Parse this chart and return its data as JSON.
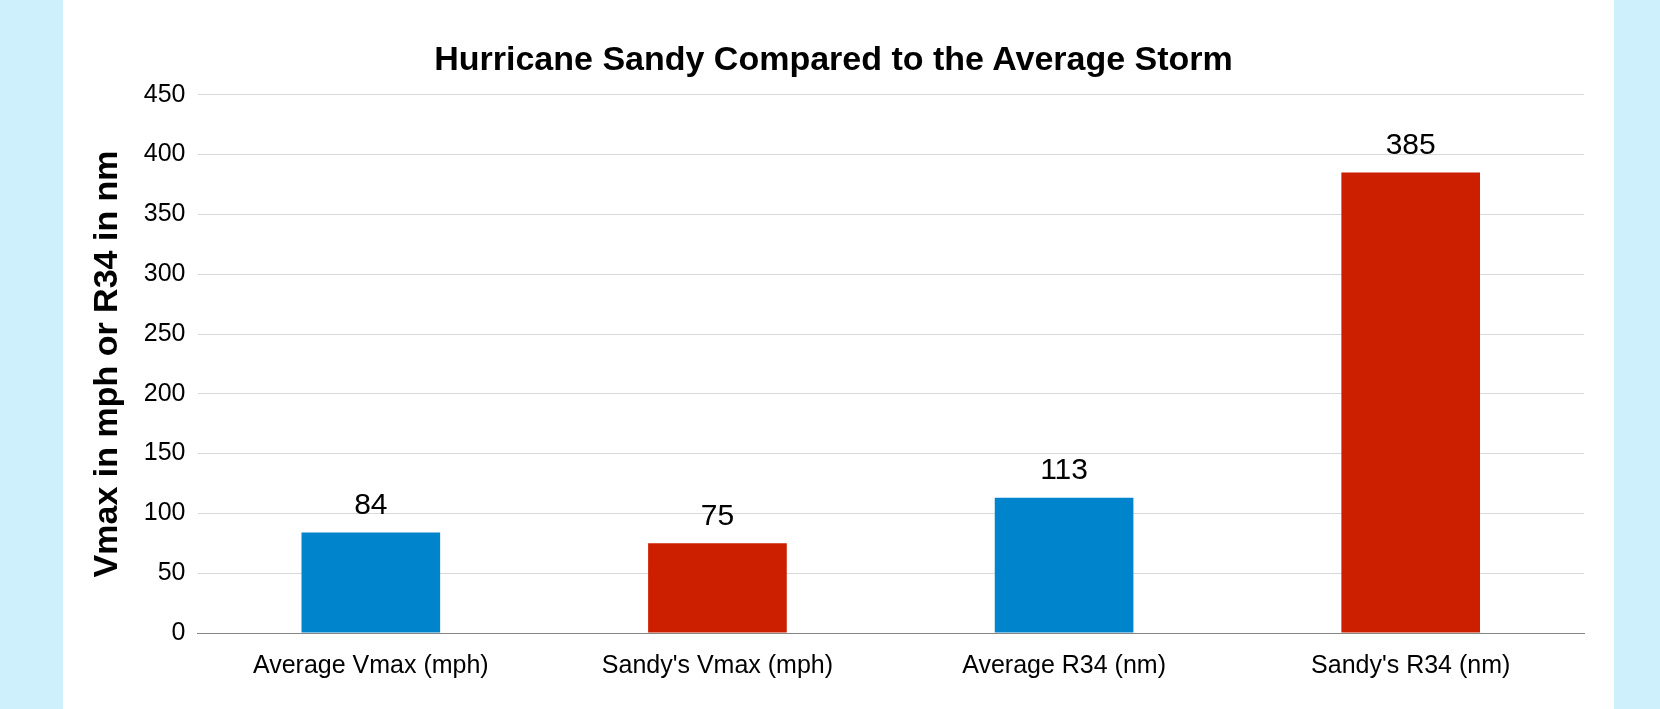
{
  "chart_data": {
    "type": "bar",
    "title": "Hurricane Sandy Compared to the Average Storm",
    "ylabel": "Vmax in mph or R34 in nm",
    "categories": [
      "Average Vmax (mph)",
      "Sandy's Vmax (mph)",
      "Average R34 (nm)",
      "Sandy's R34 (nm)"
    ],
    "values": [
      84,
      75,
      113,
      385
    ],
    "colors": [
      "#0085cc",
      "#cc1f00",
      "#0085cc",
      "#cc1f00"
    ],
    "ylim": [
      0,
      450
    ],
    "yticks": [
      0,
      50,
      100,
      150,
      200,
      250,
      300,
      350,
      400,
      450
    ],
    "grid": "y",
    "data_labels": true
  }
}
